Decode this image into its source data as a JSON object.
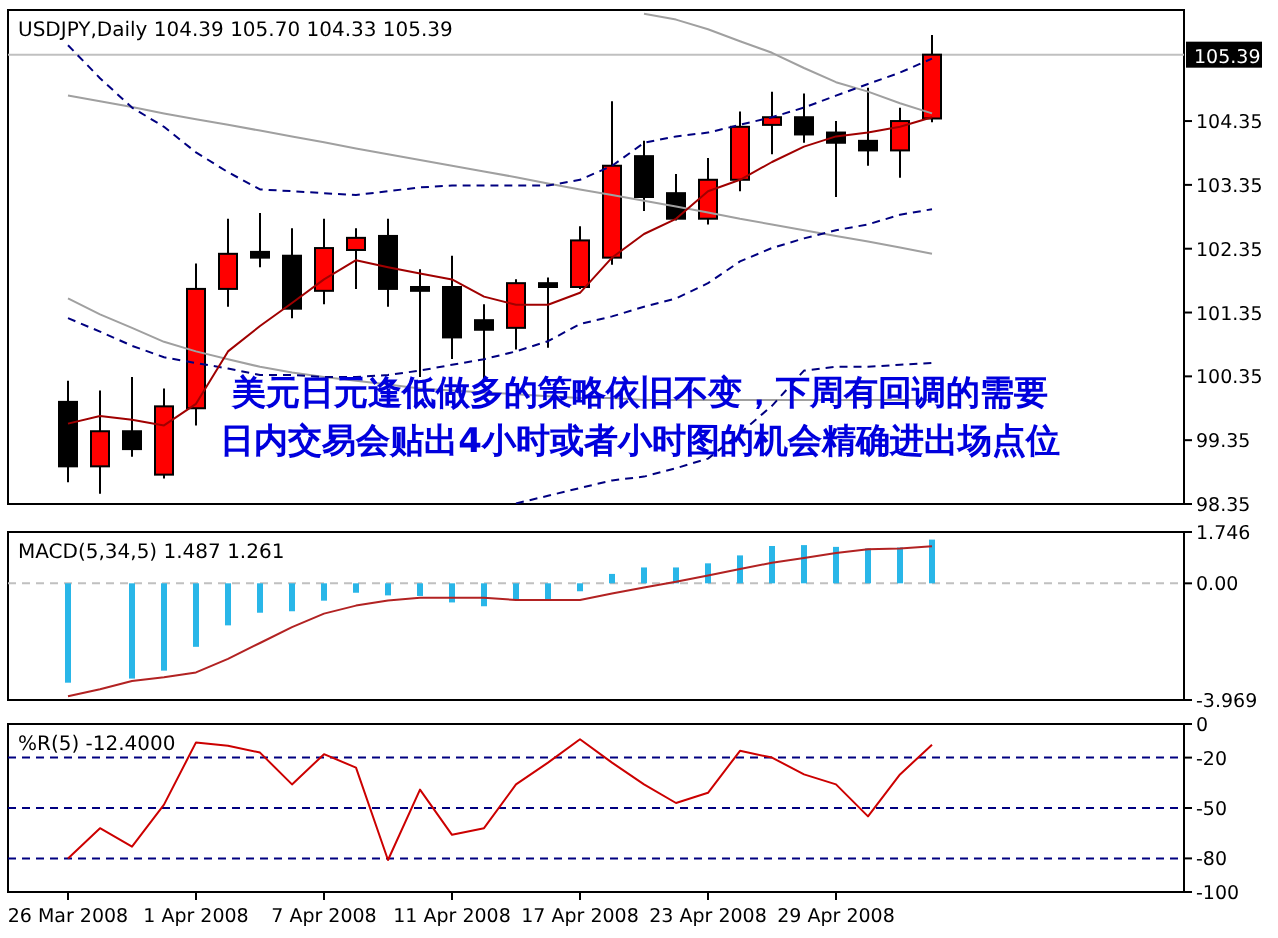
{
  "chart_data": [
    {
      "type": "candlestick",
      "title": "USDJPY,Daily 104.39 105.70 104.33 105.39",
      "tick_labels": "y",
      "categories": [
        null,
        null,
        null,
        null,
        null,
        null,
        null,
        null,
        null,
        null,
        null,
        null,
        null,
        null,
        null,
        null,
        null,
        null,
        null,
        null,
        null,
        null,
        null,
        null,
        null,
        null,
        null,
        null
      ],
      "ohlc": [
        [
          99.95,
          100.28,
          98.69,
          98.94
        ],
        [
          98.94,
          100.13,
          98.51,
          99.49
        ],
        [
          99.49,
          100.34,
          99.09,
          99.21
        ],
        [
          98.81,
          100.16,
          98.75,
          99.88
        ],
        [
          99.85,
          102.12,
          99.58,
          101.72
        ],
        [
          101.72,
          102.82,
          101.44,
          102.27
        ],
        [
          102.3,
          102.91,
          102.06,
          102.21
        ],
        [
          102.24,
          102.67,
          101.26,
          101.41
        ],
        [
          101.69,
          102.82,
          101.48,
          102.36
        ],
        [
          102.33,
          102.67,
          101.72,
          102.52
        ],
        [
          102.55,
          102.82,
          101.44,
          101.72
        ],
        [
          101.75,
          102.03,
          100.34,
          101.69
        ],
        [
          101.75,
          102.24,
          100.62,
          100.96
        ],
        [
          101.23,
          101.48,
          100.28,
          101.08
        ],
        [
          101.11,
          101.87,
          100.77,
          101.81
        ],
        [
          101.81,
          101.9,
          100.8,
          101.75
        ],
        [
          101.75,
          102.7,
          101.72,
          102.48
        ],
        [
          102.21,
          104.66,
          102.1,
          103.65
        ],
        [
          103.8,
          104.04,
          102.94,
          103.16
        ],
        [
          103.22,
          103.52,
          102.79,
          102.82
        ],
        [
          102.82,
          103.77,
          102.73,
          103.43
        ],
        [
          103.43,
          104.5,
          103.25,
          104.26
        ],
        [
          104.29,
          104.81,
          103.83,
          104.41
        ],
        [
          104.41,
          104.78,
          104.01,
          104.14
        ],
        [
          104.17,
          104.35,
          103.16,
          104.01
        ],
        [
          104.04,
          104.87,
          103.65,
          103.89
        ],
        [
          103.89,
          104.56,
          103.46,
          104.35
        ],
        [
          104.39,
          105.7,
          104.33,
          105.39
        ]
      ],
      "series": [
        {
          "type": "line",
          "color": "#a0a0a0",
          "values": [
            null,
            null,
            null,
            null,
            null,
            null,
            null,
            null,
            null,
            null,
            null,
            null,
            null,
            null,
            null,
            null,
            null,
            null,
            106.03,
            105.94,
            105.79,
            105.6,
            105.42,
            105.18,
            104.96,
            104.81,
            104.63,
            104.47
          ]
        },
        {
          "type": "line",
          "color": "#a0a0a0",
          "values": [
            104.75,
            104.66,
            104.57,
            104.47,
            104.38,
            104.29,
            104.2,
            104.11,
            104.02,
            103.92,
            103.83,
            103.74,
            103.65,
            103.56,
            103.47,
            103.37,
            103.28,
            103.19,
            103.1,
            103.01,
            102.92,
            102.82,
            102.73,
            102.64,
            102.55,
            102.46,
            102.37,
            102.27
          ]
        },
        {
          "type": "line",
          "color": "#a0a0a0",
          "values": [
            101.57,
            101.32,
            101.11,
            100.89,
            100.74,
            100.62,
            100.5,
            100.41,
            100.34,
            100.28,
            100.22,
            100.16,
            100.13,
            100.1,
            100.07,
            100.04,
            100.01,
            100.01,
            99.98,
            99.98,
            99.98,
            99.98,
            99.98,
            99.98,
            99.98,
            99.98,
            99.98,
            99.98
          ]
        },
        {
          "type": "line",
          "color": "#000080",
          "line_style": "dashed",
          "values": [
            105.54,
            105.02,
            104.56,
            104.26,
            103.86,
            103.55,
            103.28,
            103.25,
            103.22,
            103.19,
            103.25,
            103.31,
            103.34,
            103.34,
            103.34,
            103.34,
            103.43,
            103.65,
            104.01,
            104.11,
            104.17,
            104.29,
            104.41,
            104.56,
            104.75,
            104.93,
            105.11,
            105.33
          ]
        },
        {
          "type": "line",
          "color": "#000080",
          "line_style": "dashed",
          "values": [
            101.26,
            101.05,
            100.83,
            100.65,
            100.56,
            100.47,
            100.37,
            100.37,
            100.34,
            100.34,
            100.37,
            100.44,
            100.53,
            100.62,
            100.74,
            100.9,
            101.17,
            101.29,
            101.44,
            101.57,
            101.81,
            102.15,
            102.36,
            102.51,
            102.64,
            102.73,
            102.88,
            102.97
          ]
        },
        {
          "type": "line",
          "color": "#000080",
          "line_style": "dashed",
          "values": [
            null,
            null,
            null,
            null,
            null,
            null,
            null,
            null,
            null,
            null,
            null,
            null,
            null,
            null,
            98.36,
            98.48,
            98.6,
            98.72,
            98.78,
            98.91,
            99.06,
            99.46,
            99.89,
            100.44,
            100.5,
            100.5,
            100.53,
            100.56
          ]
        },
        {
          "type": "line",
          "color": "#a00000",
          "values": [
            99.61,
            99.73,
            99.67,
            99.58,
            99.92,
            100.74,
            101.14,
            101.5,
            101.87,
            102.17,
            102.06,
            101.96,
            101.87,
            101.6,
            101.47,
            101.47,
            101.66,
            102.21,
            102.58,
            102.82,
            103.25,
            103.43,
            103.71,
            103.95,
            104.11,
            104.17,
            104.26,
            104.41
          ]
        }
      ],
      "ylim": [
        98.35,
        106.09
      ],
      "yticks": [
        104.35,
        103.35,
        102.35,
        101.35,
        100.35,
        99.35,
        98.35
      ],
      "ref_lines": [
        {
          "axis": "y",
          "value": 105.39,
          "label": "105.39",
          "color": "#c0c0c0"
        }
      ],
      "annotations": [
        "美元日元逢低做多的策略依旧不变，下周有回调的需要",
        "日内交易会贴出4小时或者小时图的机会精确进出场点位"
      ]
    },
    {
      "type": "bar",
      "title": "MACD(5,34,5) 1.487 1.261",
      "tick_labels": "y",
      "categories": [
        null,
        null,
        null,
        null,
        null,
        null,
        null,
        null,
        null,
        null,
        null,
        null,
        null,
        null,
        null,
        null,
        null,
        null,
        null,
        null,
        null,
        null,
        null,
        null,
        null,
        null,
        null,
        null
      ],
      "series": [
        {
          "type": "bar",
          "color": "#29b6e8",
          "values": [
            -3.38,
            null,
            -3.24,
            -2.97,
            -2.16,
            -1.43,
            -1.0,
            -0.95,
            -0.59,
            -0.32,
            -0.41,
            -0.43,
            -0.65,
            -0.78,
            -0.54,
            -0.54,
            -0.27,
            0.32,
            0.54,
            0.54,
            0.68,
            0.95,
            1.27,
            1.3,
            1.24,
            1.19,
            1.22,
            1.487
          ]
        },
        {
          "type": "line",
          "color": "#b22222",
          "values": [
            -3.84,
            -3.6,
            -3.32,
            -3.19,
            -3.03,
            -2.57,
            -2.03,
            -1.49,
            -1.03,
            -0.76,
            -0.59,
            -0.49,
            -0.49,
            -0.49,
            -0.57,
            -0.57,
            -0.57,
            -0.35,
            -0.14,
            0.05,
            0.27,
            0.49,
            0.7,
            0.86,
            1.03,
            1.16,
            1.19,
            1.261
          ]
        }
      ],
      "ylim": [
        -3.969,
        1.746
      ],
      "yticks": [
        1.746,
        {
          "value": 0,
          "label": "0.00"
        },
        -3.969
      ],
      "ref_lines": [
        {
          "axis": "y",
          "value": 0,
          "color": "#c0c0c0",
          "line_style": "dashed"
        }
      ]
    },
    {
      "type": "line",
      "title": "%R(5) -12.4000",
      "color": "#cc0000",
      "categories": [
        "26 Mar 2008",
        null,
        null,
        null,
        "1 Apr 2008",
        null,
        null,
        null,
        "7 Apr 2008",
        null,
        null,
        null,
        "11 Apr 2008",
        null,
        null,
        null,
        "17 Apr 2008",
        null,
        null,
        null,
        "23 Apr 2008",
        null,
        null,
        null,
        "29 Apr 2008",
        null,
        null,
        null
      ],
      "values": [
        -80,
        -62,
        -73,
        -48,
        -11,
        -13,
        -17,
        -36,
        -18,
        -26,
        -81,
        -39,
        -66,
        -62,
        -36,
        -23,
        -9,
        -23,
        -36,
        -47,
        -41,
        -16,
        -20,
        -30,
        -36,
        -55,
        -30,
        -12.4
      ],
      "ylim": [
        -100,
        0
      ],
      "yticks": [
        0,
        -20,
        -50,
        -80,
        -100
      ],
      "ref_lines": [
        {
          "axis": "y",
          "value": -20,
          "color": "#000080",
          "line_style": "dashed"
        },
        {
          "axis": "y",
          "value": -50,
          "color": "#000080",
          "line_style": "dashed"
        },
        {
          "axis": "y",
          "value": -80,
          "color": "#000080",
          "line_style": "dashed"
        }
      ]
    }
  ]
}
